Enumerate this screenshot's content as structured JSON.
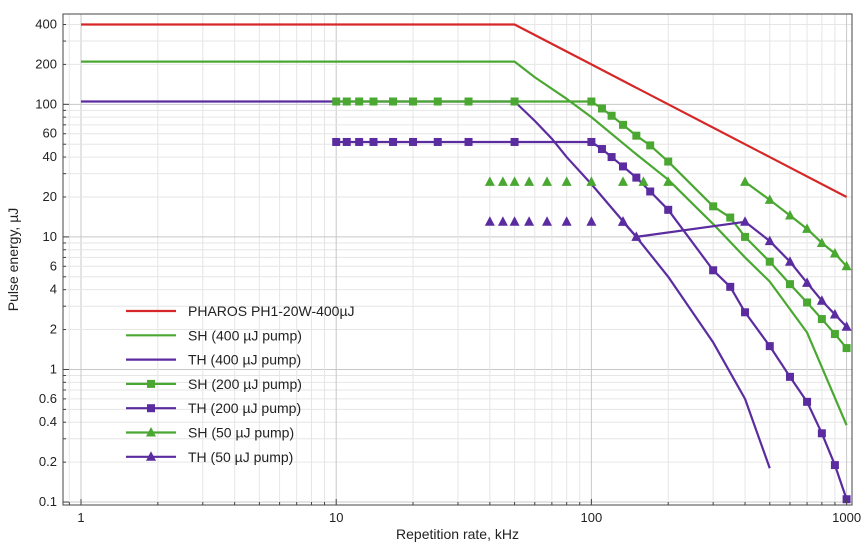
{
  "chart_data": {
    "type": "line",
    "xlabel": "Repetition rate, kHz",
    "ylabel": "Pulse energy, µJ",
    "xscale": "log",
    "yscale": "log",
    "xlim": [
      0.85,
      1050
    ],
    "ylim": [
      0.095,
      480
    ],
    "grid": true,
    "legend_position": "lower-left",
    "x_ticks": [
      {
        "value": 1,
        "label": "1"
      },
      {
        "value": 10,
        "label": "10"
      },
      {
        "value": 100,
        "label": "100"
      },
      {
        "value": 1000,
        "label": "1000"
      }
    ],
    "y_ticks": [
      {
        "value": 400,
        "label": "400"
      },
      {
        "value": 200,
        "label": "200"
      },
      {
        "value": 100,
        "label": "100"
      },
      {
        "value": 60,
        "label": "60"
      },
      {
        "value": 40,
        "label": "40"
      },
      {
        "value": 20,
        "label": "20"
      },
      {
        "value": 10,
        "label": "10"
      },
      {
        "value": 6,
        "label": "6"
      },
      {
        "value": 4,
        "label": "4"
      },
      {
        "value": 2,
        "label": "2"
      },
      {
        "value": 1,
        "label": "1"
      },
      {
        "value": 0.6,
        "label": "0.6"
      },
      {
        "value": 0.4,
        "label": "0.4"
      },
      {
        "value": 0.2,
        "label": "0.2"
      },
      {
        "value": 0.1,
        "label": "0.1"
      }
    ],
    "series": [
      {
        "name": "PHAROS PH1-20W-400µJ",
        "color": "#d62728",
        "marker": "none",
        "line": true,
        "x": [
          1,
          50,
          100,
          200,
          500,
          1000
        ],
        "y": [
          400,
          400,
          200,
          100,
          40,
          20
        ]
      },
      {
        "name": "SH (400 µJ pump)",
        "color": "#4aa832",
        "marker": "none",
        "line": true,
        "x": [
          1,
          50,
          60,
          80,
          100,
          150,
          200,
          300,
          400,
          500,
          700,
          1000
        ],
        "y": [
          210,
          210,
          160,
          110,
          80,
          42,
          27,
          12.5,
          7,
          4.6,
          1.9,
          0.38
        ]
      },
      {
        "name": "TH (400 µJ pump)",
        "color": "#5b2ca0",
        "marker": "none",
        "line": true,
        "x": [
          1,
          50,
          60,
          70,
          80,
          100,
          150,
          200,
          300,
          400,
          500
        ],
        "y": [
          105,
          105,
          75,
          55,
          40,
          25,
          10,
          5,
          1.6,
          0.6,
          0.18
        ]
      },
      {
        "name": "SH (200 µJ pump)",
        "color": "#4aa832",
        "marker": "square",
        "line": true,
        "x": [
          10,
          11,
          12.3,
          14,
          16.7,
          20,
          25,
          33,
          50,
          100,
          110,
          120,
          133,
          150,
          170,
          200,
          300,
          350,
          400,
          500,
          600,
          700,
          800,
          900,
          1000
        ],
        "y": [
          105,
          105,
          105,
          105,
          105,
          105,
          105,
          105,
          105,
          105,
          93,
          82,
          70,
          58,
          49,
          37,
          17,
          14,
          10,
          6.5,
          4.4,
          3.2,
          2.4,
          1.85,
          1.45
        ]
      },
      {
        "name": "TH (200 µJ pump)",
        "color": "#5b2ca0",
        "marker": "square",
        "line": true,
        "x": [
          10,
          11,
          12.3,
          14,
          16.7,
          20,
          25,
          33,
          50,
          100,
          110,
          120,
          133,
          150,
          170,
          200,
          300,
          350,
          400,
          500,
          600,
          700,
          800,
          900,
          1000
        ],
        "y": [
          52,
          52,
          52,
          52,
          52,
          52,
          52,
          52,
          52,
          52,
          46,
          40,
          34,
          28,
          22,
          16,
          5.6,
          4.2,
          2.7,
          1.5,
          0.88,
          0.57,
          0.33,
          0.19,
          0.105
        ]
      },
      {
        "name": "SH (50 µJ pump)",
        "color": "#4aa832",
        "marker": "triangle",
        "line": false,
        "x": [
          40,
          45,
          50,
          57,
          67,
          80,
          100,
          133,
          160,
          200
        ],
        "y": [
          26,
          26,
          26,
          26,
          26,
          26,
          26,
          26,
          26,
          26
        ]
      },
      {
        "name": "SH (50 µJ pump)",
        "color": "#4aa832",
        "marker": "triangle",
        "line": true,
        "x": [
          400,
          500,
          600,
          700,
          800,
          900,
          1000
        ],
        "y": [
          26,
          19,
          14.5,
          11.5,
          9,
          7.5,
          6
        ]
      },
      {
        "name": "TH (50 µJ pump)",
        "color": "#5b2ca0",
        "marker": "triangle",
        "line": false,
        "x": [
          40,
          45,
          50,
          57,
          67,
          80,
          100,
          133
        ],
        "y": [
          13,
          13,
          13,
          13,
          13,
          13,
          13,
          13
        ]
      },
      {
        "name": "TH (50 µJ pump)",
        "color": "#5b2ca0",
        "marker": "triangle",
        "line": true,
        "x": [
          133,
          150,
          400,
          500,
          600,
          700,
          800,
          900,
          1000
        ],
        "y": [
          13,
          10,
          13,
          9.3,
          6.5,
          4.5,
          3.3,
          2.6,
          2.1
        ]
      }
    ],
    "legend": [
      {
        "name": "PHAROS PH1-20W-400µJ",
        "color": "#d62728",
        "marker": "none"
      },
      {
        "name": "SH (400 µJ pump)",
        "color": "#4aa832",
        "marker": "none"
      },
      {
        "name": "TH (400 µJ pump)",
        "color": "#5b2ca0",
        "marker": "none"
      },
      {
        "name": "SH (200 µJ pump)",
        "color": "#4aa832",
        "marker": "square"
      },
      {
        "name": "TH (200 µJ pump)",
        "color": "#5b2ca0",
        "marker": "square"
      },
      {
        "name": "SH (50 µJ pump)",
        "color": "#4aa832",
        "marker": "triangle"
      },
      {
        "name": "TH (50 µJ pump)",
        "color": "#5b2ca0",
        "marker": "triangle"
      }
    ]
  }
}
